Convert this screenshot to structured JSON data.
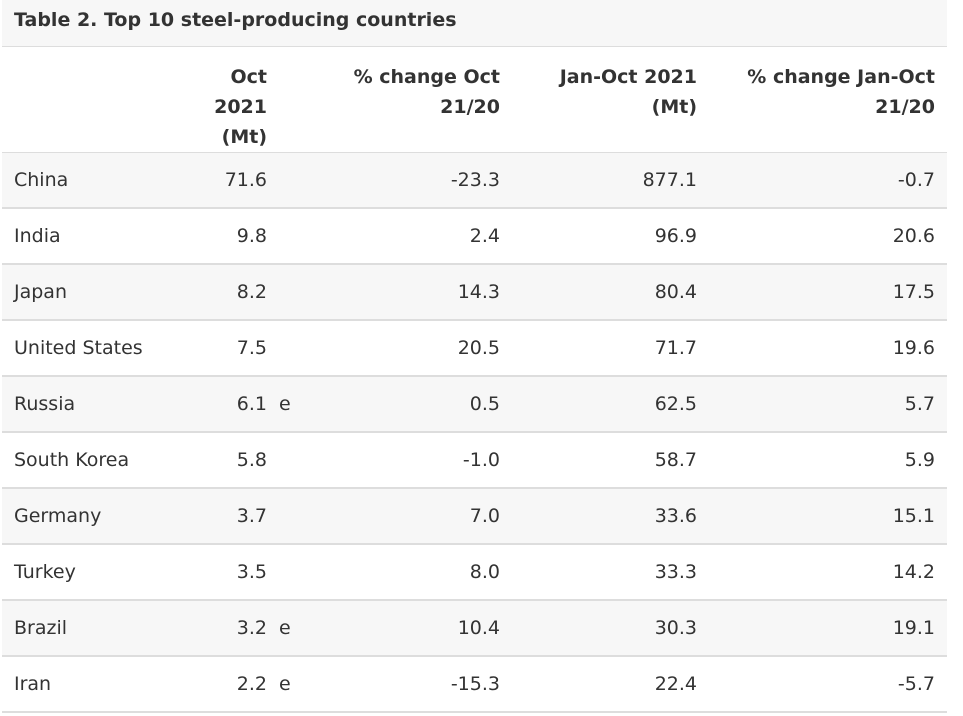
{
  "table": {
    "caption": "Table 2. Top 10 steel-producing countries",
    "headers": {
      "country": "",
      "oct": "Oct 2021 (Mt)",
      "flag": "",
      "pct_oct": "% change Oct 21/20",
      "jan_oct": "Jan-Oct 2021 (Mt)",
      "pct_jan_oct": "% change Jan-Oct 21/20"
    },
    "rows": [
      {
        "country": "China",
        "oct": "71.6",
        "flag": "",
        "pct_oct": "-23.3",
        "jan_oct": "877.1",
        "pct_jan_oct": "-0.7"
      },
      {
        "country": "India",
        "oct": "9.8",
        "flag": "",
        "pct_oct": "2.4",
        "jan_oct": "96.9",
        "pct_jan_oct": "20.6"
      },
      {
        "country": "Japan",
        "oct": "8.2",
        "flag": "",
        "pct_oct": "14.3",
        "jan_oct": "80.4",
        "pct_jan_oct": "17.5"
      },
      {
        "country": "United States",
        "oct": "7.5",
        "flag": "",
        "pct_oct": "20.5",
        "jan_oct": "71.7",
        "pct_jan_oct": "19.6"
      },
      {
        "country": "Russia",
        "oct": "6.1",
        "flag": "e",
        "pct_oct": "0.5",
        "jan_oct": "62.5",
        "pct_jan_oct": "5.7"
      },
      {
        "country": "South Korea",
        "oct": "5.8",
        "flag": "",
        "pct_oct": "-1.0",
        "jan_oct": "58.7",
        "pct_jan_oct": "5.9"
      },
      {
        "country": "Germany",
        "oct": "3.7",
        "flag": "",
        "pct_oct": "7.0",
        "jan_oct": "33.6",
        "pct_jan_oct": "15.1"
      },
      {
        "country": "Turkey",
        "oct": "3.5",
        "flag": "",
        "pct_oct": "8.0",
        "jan_oct": "33.3",
        "pct_jan_oct": "14.2"
      },
      {
        "country": "Brazil",
        "oct": "3.2",
        "flag": "e",
        "pct_oct": "10.4",
        "jan_oct": "30.3",
        "pct_jan_oct": "19.1"
      },
      {
        "country": "Iran",
        "oct": "2.2",
        "flag": "e",
        "pct_oct": "-15.3",
        "jan_oct": "22.4",
        "pct_jan_oct": "-5.7"
      }
    ]
  }
}
